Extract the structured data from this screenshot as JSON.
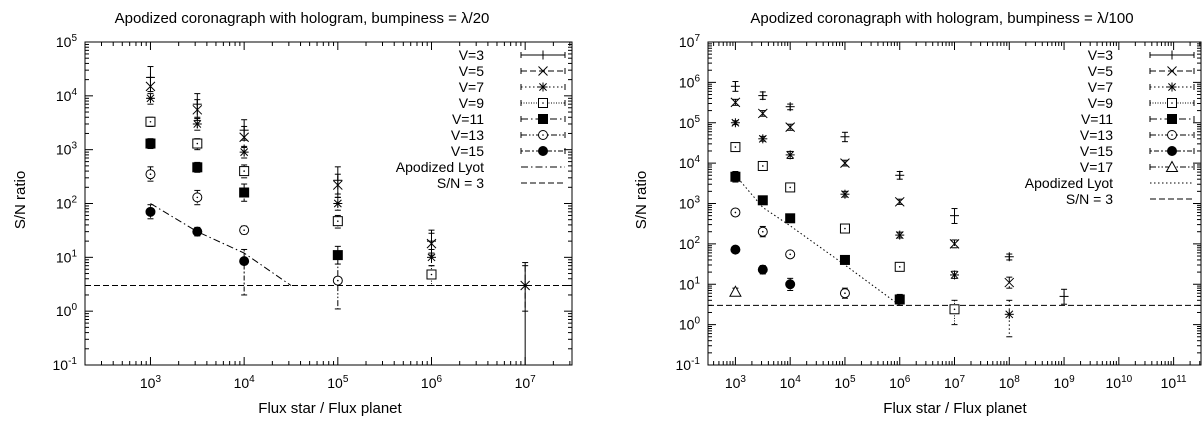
{
  "chart_data": [
    {
      "type": "scatter",
      "title": "Apodized coronagraph with hologram, bumpiness = λ/20",
      "xlabel": "Flux star / Flux planet",
      "ylabel": "S/N ratio",
      "xscale": "log",
      "yscale": "log",
      "xlim": [
        200,
        31622776
      ],
      "ylim": [
        0.1,
        100000
      ],
      "x_tick_exponents": [
        3,
        4,
        5,
        6,
        7
      ],
      "y_tick_exponents": [
        -1,
        0,
        1,
        2,
        3,
        4,
        5
      ],
      "grid": false,
      "legend_position": "top-right",
      "series": [
        {
          "name": "V=3",
          "marker": "plus",
          "line": "solid",
          "points": [
            [
              1000,
              22000,
              12000,
              35000
            ],
            [
              3162,
              7000,
              4000,
              11000
            ],
            [
              10000,
              2300,
              1500,
              3600
            ],
            [
              100000,
              270,
              150,
              480
            ],
            [
              1000000,
              20,
              12,
              32
            ],
            [
              10000000,
              3,
              0.1,
              8
            ]
          ]
        },
        {
          "name": "V=5",
          "marker": "x",
          "line": "dashed",
          "points": [
            [
              1000,
              15000,
              9000,
              22000
            ],
            [
              3162,
              5500,
              3500,
              8500
            ],
            [
              10000,
              1700,
              1100,
              2700
            ],
            [
              100000,
              220,
              130,
              350
            ],
            [
              1000000,
              18,
              11,
              28
            ],
            [
              10000000,
              3,
              1,
              7
            ]
          ]
        },
        {
          "name": "V=7",
          "marker": "star",
          "line": "dotted",
          "points": [
            [
              1000,
              9000,
              7000,
              11000
            ],
            [
              3162,
              3000,
              2300,
              3800
            ],
            [
              10000,
              900,
              700,
              1150
            ],
            [
              100000,
              100,
              75,
              130
            ],
            [
              1000000,
              10,
              7,
              14
            ]
          ]
        },
        {
          "name": "V=9",
          "marker": "open-square",
          "line": "densely-dotted",
          "points": [
            [
              1000,
              3300,
              2700,
              4000
            ],
            [
              3162,
              1300,
              1000,
              1600
            ],
            [
              10000,
              400,
              300,
              520
            ],
            [
              100000,
              47,
              35,
              60
            ],
            [
              1000000,
              4.8,
              3,
              7
            ]
          ]
        },
        {
          "name": "V=11",
          "marker": "filled-square",
          "line": "dash-dot",
          "points": [
            [
              1000,
              1300,
              1050,
              1600
            ],
            [
              3162,
              470,
              380,
              580
            ],
            [
              10000,
              160,
              110,
              230
            ],
            [
              100000,
              11,
              7.5,
              16
            ]
          ]
        },
        {
          "name": "V=13",
          "marker": "open-circle",
          "line": "dash-dot-dot",
          "points": [
            [
              1000,
              350,
              260,
              480
            ],
            [
              3162,
              130,
              95,
              175
            ],
            [
              10000,
              32,
              27,
              38
            ],
            [
              100000,
              3.7,
              1.1,
              11
            ]
          ]
        },
        {
          "name": "V=15",
          "marker": "filled-circle",
          "line": "dot-dash",
          "points": [
            [
              1000,
              70,
              52,
              95
            ],
            [
              3162,
              30,
              25,
              36
            ],
            [
              10000,
              8.5,
              2,
              14
            ]
          ]
        }
      ],
      "lines": [
        {
          "name": "Apodized Lyot",
          "style": "dash-dot",
          "points": [
            [
              1000,
              100
            ],
            [
              3162,
              30
            ],
            [
              10000,
              12
            ],
            [
              31622,
              3
            ]
          ]
        },
        {
          "name": "S/N = 3",
          "style": "dashed",
          "y": 3
        }
      ]
    },
    {
      "type": "scatter",
      "title": "Apodized coronagraph with hologram, bumpiness = λ/100",
      "xlabel": "Flux star / Flux planet",
      "ylabel": "S/N ratio",
      "xscale": "log",
      "yscale": "log",
      "xlim": [
        316,
        316227766017
      ],
      "ylim": [
        0.1,
        10000000
      ],
      "x_tick_exponents": [
        3,
        4,
        5,
        6,
        7,
        8,
        9,
        10,
        11
      ],
      "y_tick_exponents": [
        -1,
        0,
        1,
        2,
        3,
        4,
        5,
        6,
        7
      ],
      "grid": false,
      "legend_position": "top-right",
      "series": [
        {
          "name": "V=3",
          "marker": "plus",
          "line": "solid",
          "points": [
            [
              1000,
              800000,
              600000,
              1050000
            ],
            [
              3162,
              470000,
              380000,
              580000
            ],
            [
              10000,
              250000,
              210000,
              290000
            ],
            [
              100000,
              45000,
              34000,
              58000
            ],
            [
              1000000,
              5000,
              4000,
              6200
            ],
            [
              10000000,
              500,
              320,
              750
            ],
            [
              100000000,
              48,
              40,
              56
            ],
            [
              1000000000,
              5,
              3.2,
              7.5
            ]
          ]
        },
        {
          "name": "V=5",
          "marker": "x",
          "line": "dashed",
          "points": [
            [
              1000,
              320000,
              270000,
              380000
            ],
            [
              3162,
              170000,
              145000,
              200000
            ],
            [
              10000,
              78000,
              65000,
              92000
            ],
            [
              100000,
              10000,
              8500,
              11800
            ],
            [
              1000000,
              1100,
              950,
              1280
            ],
            [
              10000000,
              100,
              80,
              125
            ],
            [
              100000000,
              11,
              8,
              15
            ]
          ]
        },
        {
          "name": "V=7",
          "marker": "star",
          "line": "dotted",
          "points": [
            [
              1000,
              100000,
              90000,
              112000
            ],
            [
              3162,
              40000,
              35000,
              46000
            ],
            [
              10000,
              16000,
              13000,
              19500
            ],
            [
              100000,
              1700,
              1450,
              2000
            ],
            [
              1000000,
              165,
              140,
              195
            ],
            [
              10000000,
              17,
              14,
              21
            ],
            [
              100000000,
              1.8,
              0.5,
              4
            ]
          ]
        },
        {
          "name": "V=9",
          "marker": "open-square",
          "line": "densely-dotted",
          "points": [
            [
              1000,
              25000,
              20000,
              31000
            ],
            [
              3162,
              8500,
              7000,
              10200
            ],
            [
              10000,
              2500,
              2100,
              3000
            ],
            [
              100000,
              240,
              200,
              290
            ],
            [
              1000000,
              27,
              22,
              33
            ],
            [
              10000000,
              2.4,
              1,
              4
            ]
          ]
        },
        {
          "name": "V=11",
          "marker": "filled-square",
          "line": "dash-dot",
          "points": [
            [
              1000,
              4600,
              3400,
              6200
            ],
            [
              3162,
              1200,
              1000,
              1450
            ],
            [
              10000,
              430,
              360,
              510
            ],
            [
              100000,
              40,
              33,
              48
            ],
            [
              1000000,
              4.2,
              3,
              5.6
            ]
          ]
        },
        {
          "name": "V=13",
          "marker": "open-circle",
          "line": "dash-dot-dot",
          "points": [
            [
              1000,
              600,
              500,
              720
            ],
            [
              3162,
              200,
              150,
              270
            ],
            [
              10000,
              55,
              48,
              63
            ],
            [
              100000,
              6,
              4.5,
              8
            ]
          ]
        },
        {
          "name": "V=15",
          "marker": "filled-circle",
          "line": "dot-dash",
          "points": [
            [
              1000,
              72,
              62,
              84
            ],
            [
              3162,
              23,
              18,
              29
            ],
            [
              10000,
              10,
              7,
              14
            ]
          ]
        },
        {
          "name": "V=17",
          "marker": "open-triangle",
          "line": "dash-dot-dot",
          "points": [
            [
              1000,
              6.5,
              5.5,
              8
            ]
          ]
        }
      ],
      "lines": [
        {
          "name": "Apodized Lyot",
          "style": "dotted",
          "points": [
            [
              1000,
              5000
            ],
            [
              3162,
              800
            ],
            [
              10000,
              280
            ],
            [
              100000,
              30
            ],
            [
              1000000,
              3
            ]
          ]
        },
        {
          "name": "S/N = 3",
          "style": "dashed",
          "y": 3
        }
      ]
    }
  ]
}
